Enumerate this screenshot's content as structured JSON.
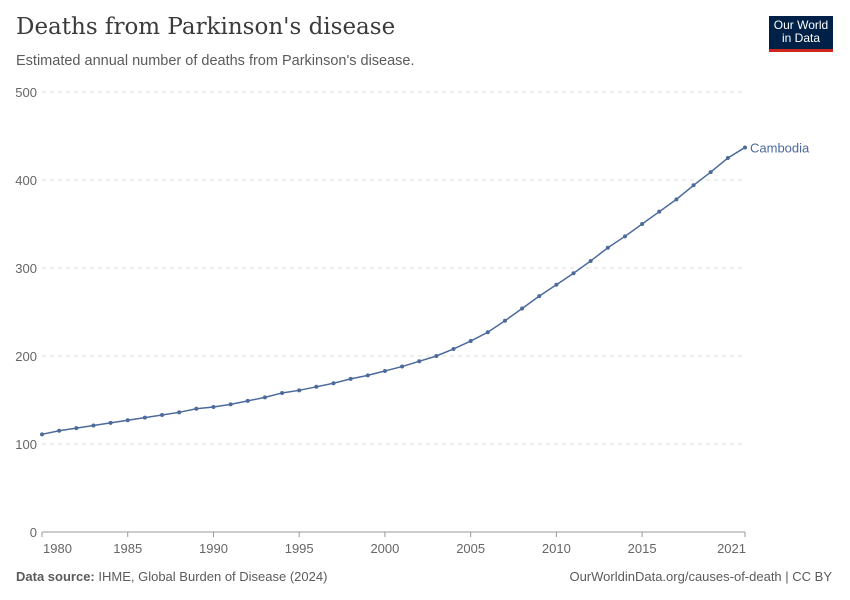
{
  "header": {
    "title": "Deaths from Parkinson's disease",
    "subtitle": "Estimated annual number of deaths from Parkinson's disease.",
    "logo": "Our World in Data"
  },
  "footer": {
    "source_label": "Data source:",
    "source": "IHME, Global Burden of Disease (2024)",
    "link": "OurWorldinData.org/causes-of-death | CC BY"
  },
  "chart_data": {
    "type": "line",
    "title": "Deaths from Parkinson's disease",
    "subtitle": "Estimated annual number of deaths from Parkinson's disease.",
    "xlabel": "",
    "ylabel": "",
    "xlim": [
      1980,
      2021
    ],
    "ylim": [
      0,
      500
    ],
    "grid": "horizontal dashed",
    "x_ticks": [
      "1980",
      "1985",
      "1990",
      "1995",
      "2000",
      "2005",
      "2010",
      "2015",
      "2021"
    ],
    "y_ticks": [
      "0",
      "100",
      "200",
      "300",
      "400",
      "500"
    ],
    "color": "#4c6a9c",
    "series": [
      {
        "name": "Cambodia",
        "x": [
          1980,
          1981,
          1982,
          1983,
          1984,
          1985,
          1986,
          1987,
          1988,
          1989,
          1990,
          1991,
          1992,
          1993,
          1994,
          1995,
          1996,
          1997,
          1998,
          1999,
          2000,
          2001,
          2002,
          2003,
          2004,
          2005,
          2006,
          2007,
          2008,
          2009,
          2010,
          2011,
          2012,
          2013,
          2014,
          2015,
          2016,
          2017,
          2018,
          2019,
          2020,
          2021
        ],
        "values": [
          111,
          115,
          118,
          121,
          124,
          127,
          130,
          133,
          136,
          140,
          142,
          145,
          149,
          153,
          158,
          161,
          165,
          169,
          174,
          178,
          183,
          188,
          194,
          200,
          208,
          217,
          227,
          240,
          254,
          268,
          281,
          294,
          308,
          323,
          336,
          350,
          364,
          378,
          394,
          409,
          425,
          437
        ]
      }
    ]
  }
}
